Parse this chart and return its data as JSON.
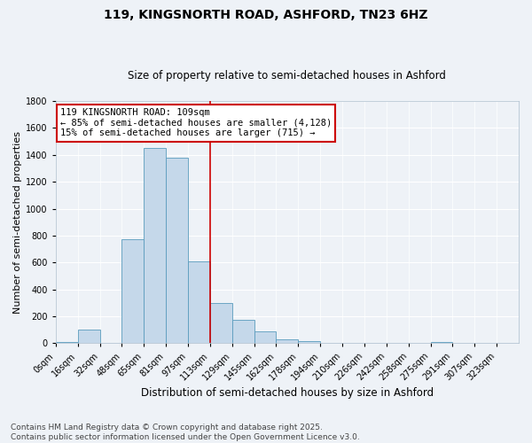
{
  "title": "119, KINGSNORTH ROAD, ASHFORD, TN23 6HZ",
  "subtitle": "Size of property relative to semi-detached houses in Ashford",
  "xlabel": "Distribution of semi-detached houses by size in Ashford",
  "ylabel": "Number of semi-detached properties",
  "bin_labels": [
    "0sqm",
    "16sqm",
    "32sqm",
    "48sqm",
    "65sqm",
    "81sqm",
    "97sqm",
    "113sqm",
    "129sqm",
    "145sqm",
    "162sqm",
    "178sqm",
    "194sqm",
    "210sqm",
    "226sqm",
    "242sqm",
    "258sqm",
    "275sqm",
    "291sqm",
    "307sqm",
    "323sqm"
  ],
  "bar_heights": [
    10,
    100,
    0,
    770,
    1450,
    1380,
    610,
    300,
    175,
    90,
    30,
    15,
    5,
    0,
    0,
    0,
    0,
    10,
    0,
    0,
    0
  ],
  "bar_color": "#c5d8ea",
  "bar_edge_color": "#5a9cbd",
  "vline_x_index": 7,
  "property_label": "119 KINGSNORTH ROAD: 109sqm",
  "annotation_line1": "← 85% of semi-detached houses are smaller (4,128)",
  "annotation_line2": "15% of semi-detached houses are larger (715) →",
  "vline_color": "#cc0000",
  "box_edge_color": "#cc0000",
  "ylim": [
    0,
    1800
  ],
  "yticks": [
    0,
    200,
    400,
    600,
    800,
    1000,
    1200,
    1400,
    1600,
    1800
  ],
  "footnote1": "Contains HM Land Registry data © Crown copyright and database right 2025.",
  "footnote2": "Contains public sector information licensed under the Open Government Licence v3.0.",
  "bg_color": "#eef2f7",
  "grid_color": "#ffffff",
  "title_fontsize": 10,
  "subtitle_fontsize": 8.5,
  "ylabel_fontsize": 8,
  "xlabel_fontsize": 8.5,
  "tick_fontsize": 7,
  "annotation_fontsize": 7.5,
  "footnote_fontsize": 6.5
}
